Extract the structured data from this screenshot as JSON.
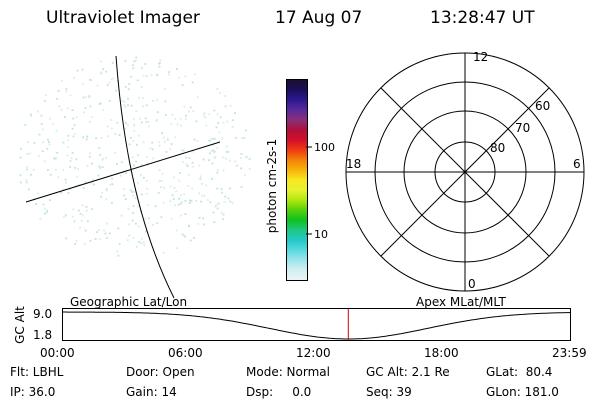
{
  "header": {
    "title": "Ultraviolet Imager",
    "date": "17 Aug 07",
    "time": "13:28:47 UT"
  },
  "colorbar": {
    "axis_label": "photon cm-2s-1",
    "ticks": [
      "100",
      "10"
    ],
    "colors": [
      "#1a1030",
      "#1a0f5a",
      "#2d1890",
      "#5a2a9a",
      "#8a2e7a",
      "#b0103a",
      "#d4102a",
      "#ee3a10",
      "#f4820a",
      "#f8b20a",
      "#f7e820",
      "#e8f030",
      "#b0e810",
      "#58d00a",
      "#10c020",
      "#1ec880",
      "#22c8c8",
      "#58d8e0",
      "#9ce4ea",
      "#d4eef2",
      "#eaf4f6"
    ]
  },
  "polar_grid": {
    "top_label": "12",
    "bottom_label": "0",
    "left_label": "18",
    "right_label": "6",
    "ring_labels": [
      "60",
      "70",
      "80"
    ]
  },
  "timeline": {
    "left_caption": "Geographic Lat/Lon",
    "right_caption": "Apex MLat/MLT",
    "y_axis_label": "GC Alt",
    "y_ticks": [
      "9.0",
      "1.8"
    ],
    "x_ticks": [
      "00:00",
      "06:00",
      "12:00",
      "18:00",
      "23:59"
    ],
    "current_time_fraction": 0.5617
  },
  "status": {
    "flt": "Flt: LBHL",
    "ip": "IP: 36.0",
    "door": "Door: Open",
    "gain": "Gain: 14",
    "mode": "Mode: Normal",
    "dsp": "Dsp:     0.0",
    "gc_alt": "GC Alt: 2.1 Re",
    "seq": "Seq: 39",
    "glat": "GLat:  80.4",
    "glon": "GLon: 181.0"
  }
}
